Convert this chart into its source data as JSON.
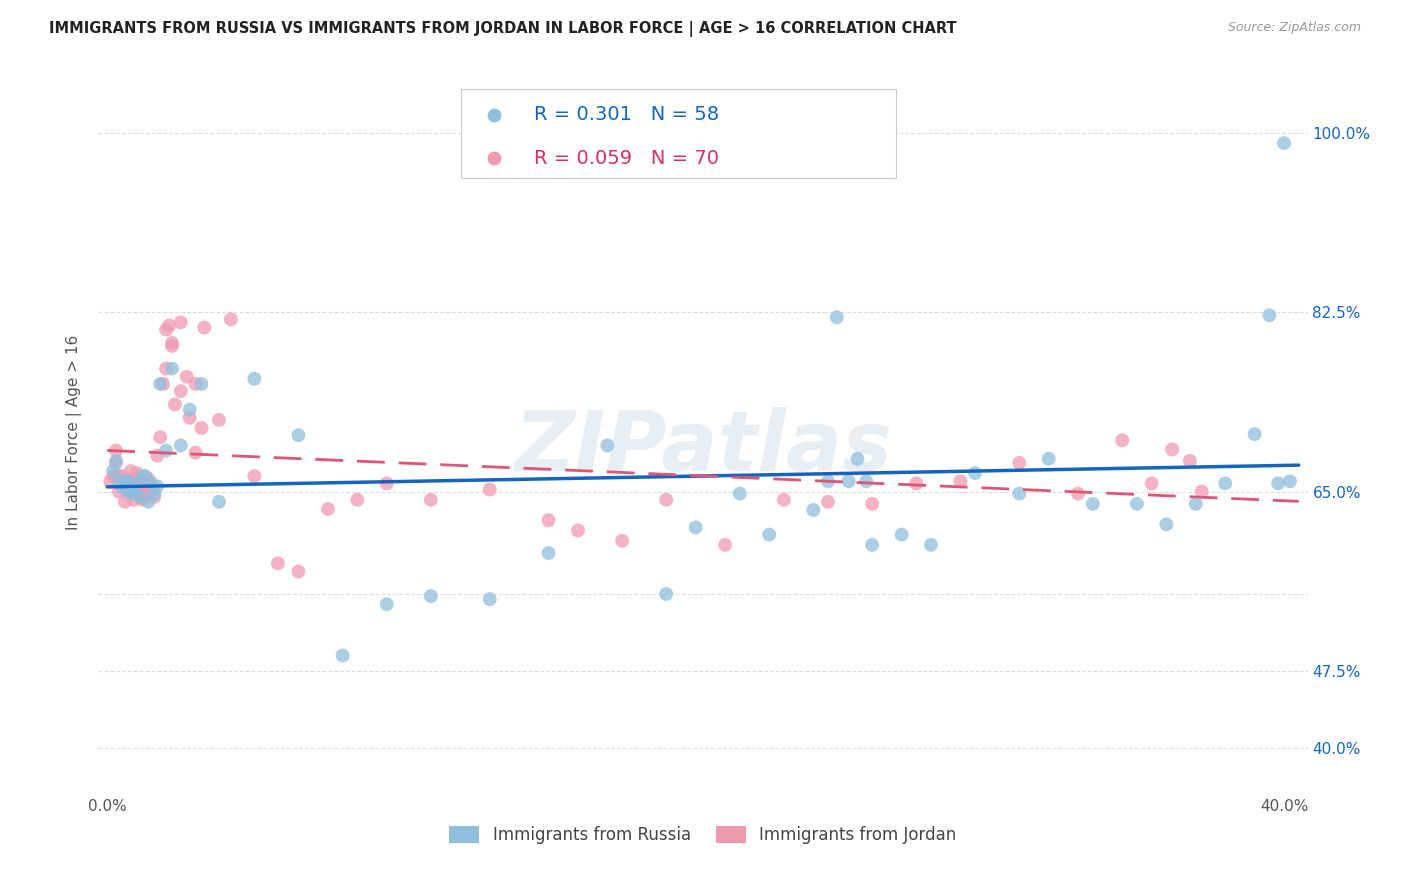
{
  "title": "IMMIGRANTS FROM RUSSIA VS IMMIGRANTS FROM JORDAN IN LABOR FORCE | AGE > 16 CORRELATION CHART",
  "source": "Source: ZipAtlas.com",
  "ylabel": "In Labor Force | Age > 16",
  "xlim": [
    -0.003,
    0.408
  ],
  "ylim": [
    0.355,
    1.06
  ],
  "ytick_positions": [
    0.4,
    0.475,
    0.55,
    0.65,
    0.825,
    1.0
  ],
  "ytick_labels": [
    "40.0%",
    "47.5%",
    "",
    "65.0%",
    "82.5%",
    "100.0%"
  ],
  "xtick_positions": [
    0.0,
    0.05,
    0.1,
    0.15,
    0.2,
    0.25,
    0.3,
    0.35,
    0.4
  ],
  "xtick_labels": [
    "0.0%",
    "",
    "",
    "",
    "",
    "",
    "",
    "",
    "40.0%"
  ],
  "russia_color": "#90bedd",
  "jordan_color": "#f09aaf",
  "russia_R": 0.301,
  "russia_N": 58,
  "jordan_R": 0.059,
  "jordan_N": 70,
  "legend_R_color": "#1565c0",
  "legend_R2_color": "#d63060",
  "trendline_russia_color": "#1565c0",
  "trendline_jordan_color": "#e05575",
  "watermark": "ZIPatlas",
  "russia_x": [
    0.002,
    0.003,
    0.004,
    0.005,
    0.006,
    0.007,
    0.007,
    0.008,
    0.009,
    0.01,
    0.011,
    0.012,
    0.013,
    0.014,
    0.015,
    0.016,
    0.017,
    0.018,
    0.02,
    0.022,
    0.025,
    0.028,
    0.032,
    0.038,
    0.05,
    0.065,
    0.08,
    0.095,
    0.11,
    0.13,
    0.15,
    0.17,
    0.19,
    0.2,
    0.215,
    0.225,
    0.24,
    0.255,
    0.26,
    0.27,
    0.28,
    0.295,
    0.31,
    0.32,
    0.335,
    0.35,
    0.36,
    0.37,
    0.38,
    0.39,
    0.395,
    0.398,
    0.4,
    0.402,
    0.245,
    0.248,
    0.252,
    0.258
  ],
  "russia_y": [
    0.67,
    0.68,
    0.66,
    0.655,
    0.66,
    0.65,
    0.66,
    0.65,
    0.648,
    0.658,
    0.645,
    0.665,
    0.665,
    0.64,
    0.658,
    0.648,
    0.655,
    0.755,
    0.69,
    0.77,
    0.695,
    0.73,
    0.755,
    0.64,
    0.76,
    0.705,
    0.49,
    0.54,
    0.548,
    0.545,
    0.59,
    0.695,
    0.55,
    0.615,
    0.648,
    0.608,
    0.632,
    0.682,
    0.598,
    0.608,
    0.598,
    0.668,
    0.648,
    0.682,
    0.638,
    0.638,
    0.618,
    0.638,
    0.658,
    0.706,
    0.822,
    0.658,
    0.99,
    0.66,
    0.66,
    0.82,
    0.66,
    0.66
  ],
  "jordan_x": [
    0.001,
    0.002,
    0.003,
    0.003,
    0.004,
    0.004,
    0.005,
    0.005,
    0.006,
    0.006,
    0.007,
    0.007,
    0.008,
    0.008,
    0.009,
    0.009,
    0.01,
    0.01,
    0.011,
    0.011,
    0.012,
    0.012,
    0.013,
    0.014,
    0.015,
    0.016,
    0.017,
    0.018,
    0.019,
    0.02,
    0.021,
    0.022,
    0.023,
    0.025,
    0.027,
    0.03,
    0.033,
    0.038,
    0.042,
    0.05,
    0.058,
    0.065,
    0.075,
    0.085,
    0.095,
    0.11,
    0.13,
    0.15,
    0.16,
    0.175,
    0.19,
    0.21,
    0.23,
    0.245,
    0.26,
    0.275,
    0.29,
    0.31,
    0.33,
    0.345,
    0.355,
    0.362,
    0.368,
    0.372,
    0.025,
    0.028,
    0.03,
    0.032,
    0.02,
    0.022
  ],
  "jordan_y": [
    0.66,
    0.665,
    0.678,
    0.69,
    0.65,
    0.665,
    0.66,
    0.665,
    0.64,
    0.655,
    0.66,
    0.658,
    0.658,
    0.67,
    0.658,
    0.642,
    0.66,
    0.668,
    0.65,
    0.655,
    0.642,
    0.645,
    0.652,
    0.662,
    0.652,
    0.645,
    0.685,
    0.703,
    0.755,
    0.808,
    0.812,
    0.792,
    0.735,
    0.815,
    0.762,
    0.755,
    0.81,
    0.72,
    0.818,
    0.665,
    0.58,
    0.572,
    0.633,
    0.642,
    0.658,
    0.642,
    0.652,
    0.622,
    0.612,
    0.602,
    0.642,
    0.598,
    0.642,
    0.64,
    0.638,
    0.658,
    0.66,
    0.678,
    0.648,
    0.7,
    0.658,
    0.691,
    0.68,
    0.65,
    0.748,
    0.722,
    0.688,
    0.712,
    0.77,
    0.795
  ]
}
